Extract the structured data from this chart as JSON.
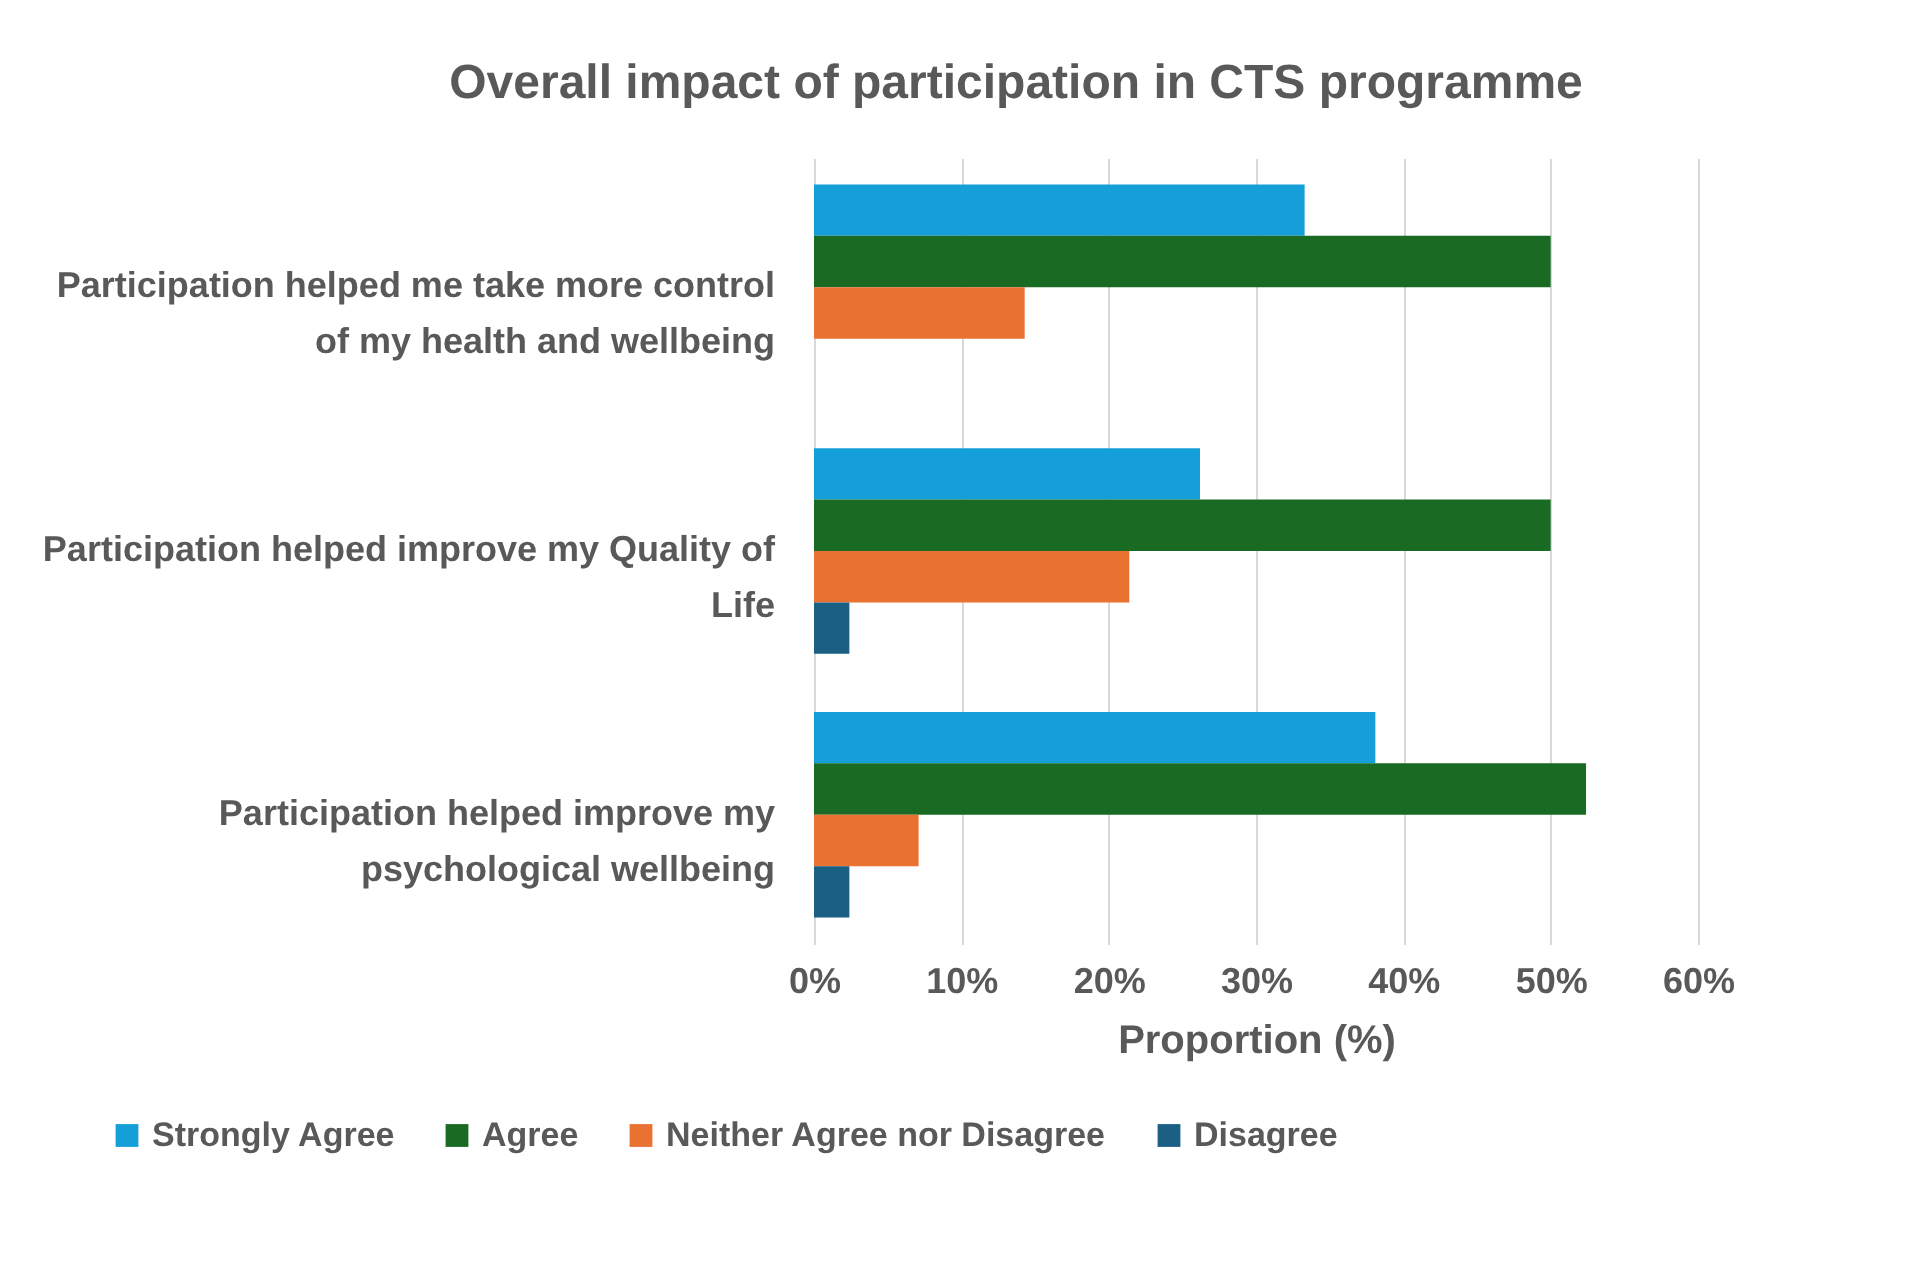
{
  "chart_data": {
    "type": "bar",
    "orientation": "horizontal",
    "title": "Overall impact of participation in CTS programme",
    "xlabel": "Proportion (%)",
    "categories": [
      "Participation helped me take more control of my health and wellbeing",
      "Participation helped improve my Quality of Life",
      "Participation helped improve my psychological wellbeing"
    ],
    "series": [
      {
        "name": "Strongly Agree",
        "color": "#149fd9",
        "values": [
          33.3,
          26.2,
          38.1
        ]
      },
      {
        "name": "Agree",
        "color": "#196b24",
        "values": [
          50,
          50,
          52.4
        ]
      },
      {
        "name": "Neither Agree nor Disagree",
        "color": "#e97132",
        "values": [
          14.3,
          21.4,
          7.1
        ]
      },
      {
        "name": "Disagree",
        "color": "#1b5f84",
        "values": [
          null,
          2.4,
          2.4
        ]
      }
    ],
    "xlim": [
      0,
      60
    ],
    "xticks": [
      {
        "value": 0,
        "label": "0%"
      },
      {
        "value": 10,
        "label": "10%"
      },
      {
        "value": 20,
        "label": "20%"
      },
      {
        "value": 30,
        "label": "30%"
      },
      {
        "value": 40,
        "label": "40%"
      },
      {
        "value": 50,
        "label": "50%"
      },
      {
        "value": 60,
        "label": "60%"
      }
    ],
    "grid": "x",
    "legend": "bottom"
  }
}
